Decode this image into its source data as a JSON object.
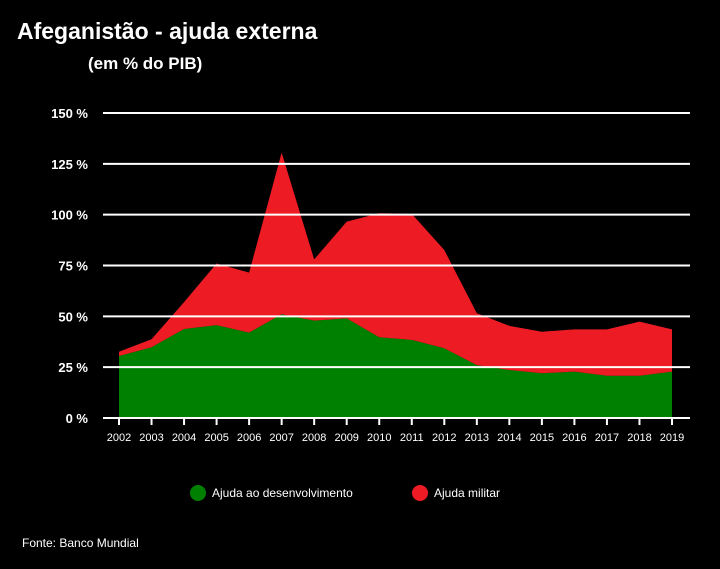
{
  "chart_data": {
    "type": "area",
    "stacked": true,
    "title": "Afeganistão - ajuda externa",
    "subtitle": "(em % do PIB)",
    "xlabel": "",
    "ylabel": "",
    "ylim": [
      0,
      150
    ],
    "yticks": [
      0,
      25,
      50,
      75,
      100,
      125,
      150
    ],
    "ytick_labels": [
      "0 %",
      "25 %",
      "50 %",
      "75 %",
      "100 %",
      "125 %",
      "150 %"
    ],
    "grid": true,
    "legend_position": "bottom",
    "x": [
      "2002",
      "2003",
      "2004",
      "2005",
      "2006",
      "2007",
      "2008",
      "2009",
      "2010",
      "2011",
      "2012",
      "2013",
      "2014",
      "2015",
      "2016",
      "2017",
      "2018",
      "2019"
    ],
    "series": [
      {
        "name": "Ajuda ao desenvolvimento",
        "color": "#008000",
        "values": [
          30.5,
          34.8,
          43.8,
          45.7,
          42.0,
          51.0,
          47.9,
          49.0,
          39.7,
          38.4,
          34.3,
          26.0,
          23.6,
          22.0,
          22.8,
          20.8,
          20.8,
          22.8
        ]
      },
      {
        "name": "Ajuda militar",
        "color": "#ED1C24",
        "values": [
          2.1,
          3.9,
          13.2,
          30.3,
          29.5,
          79.5,
          30.1,
          47.6,
          61.0,
          62.0,
          48.3,
          25.5,
          21.7,
          20.4,
          20.8,
          22.8,
          26.6,
          20.8
        ]
      }
    ]
  },
  "source": "Fonte: Banco Mundial"
}
